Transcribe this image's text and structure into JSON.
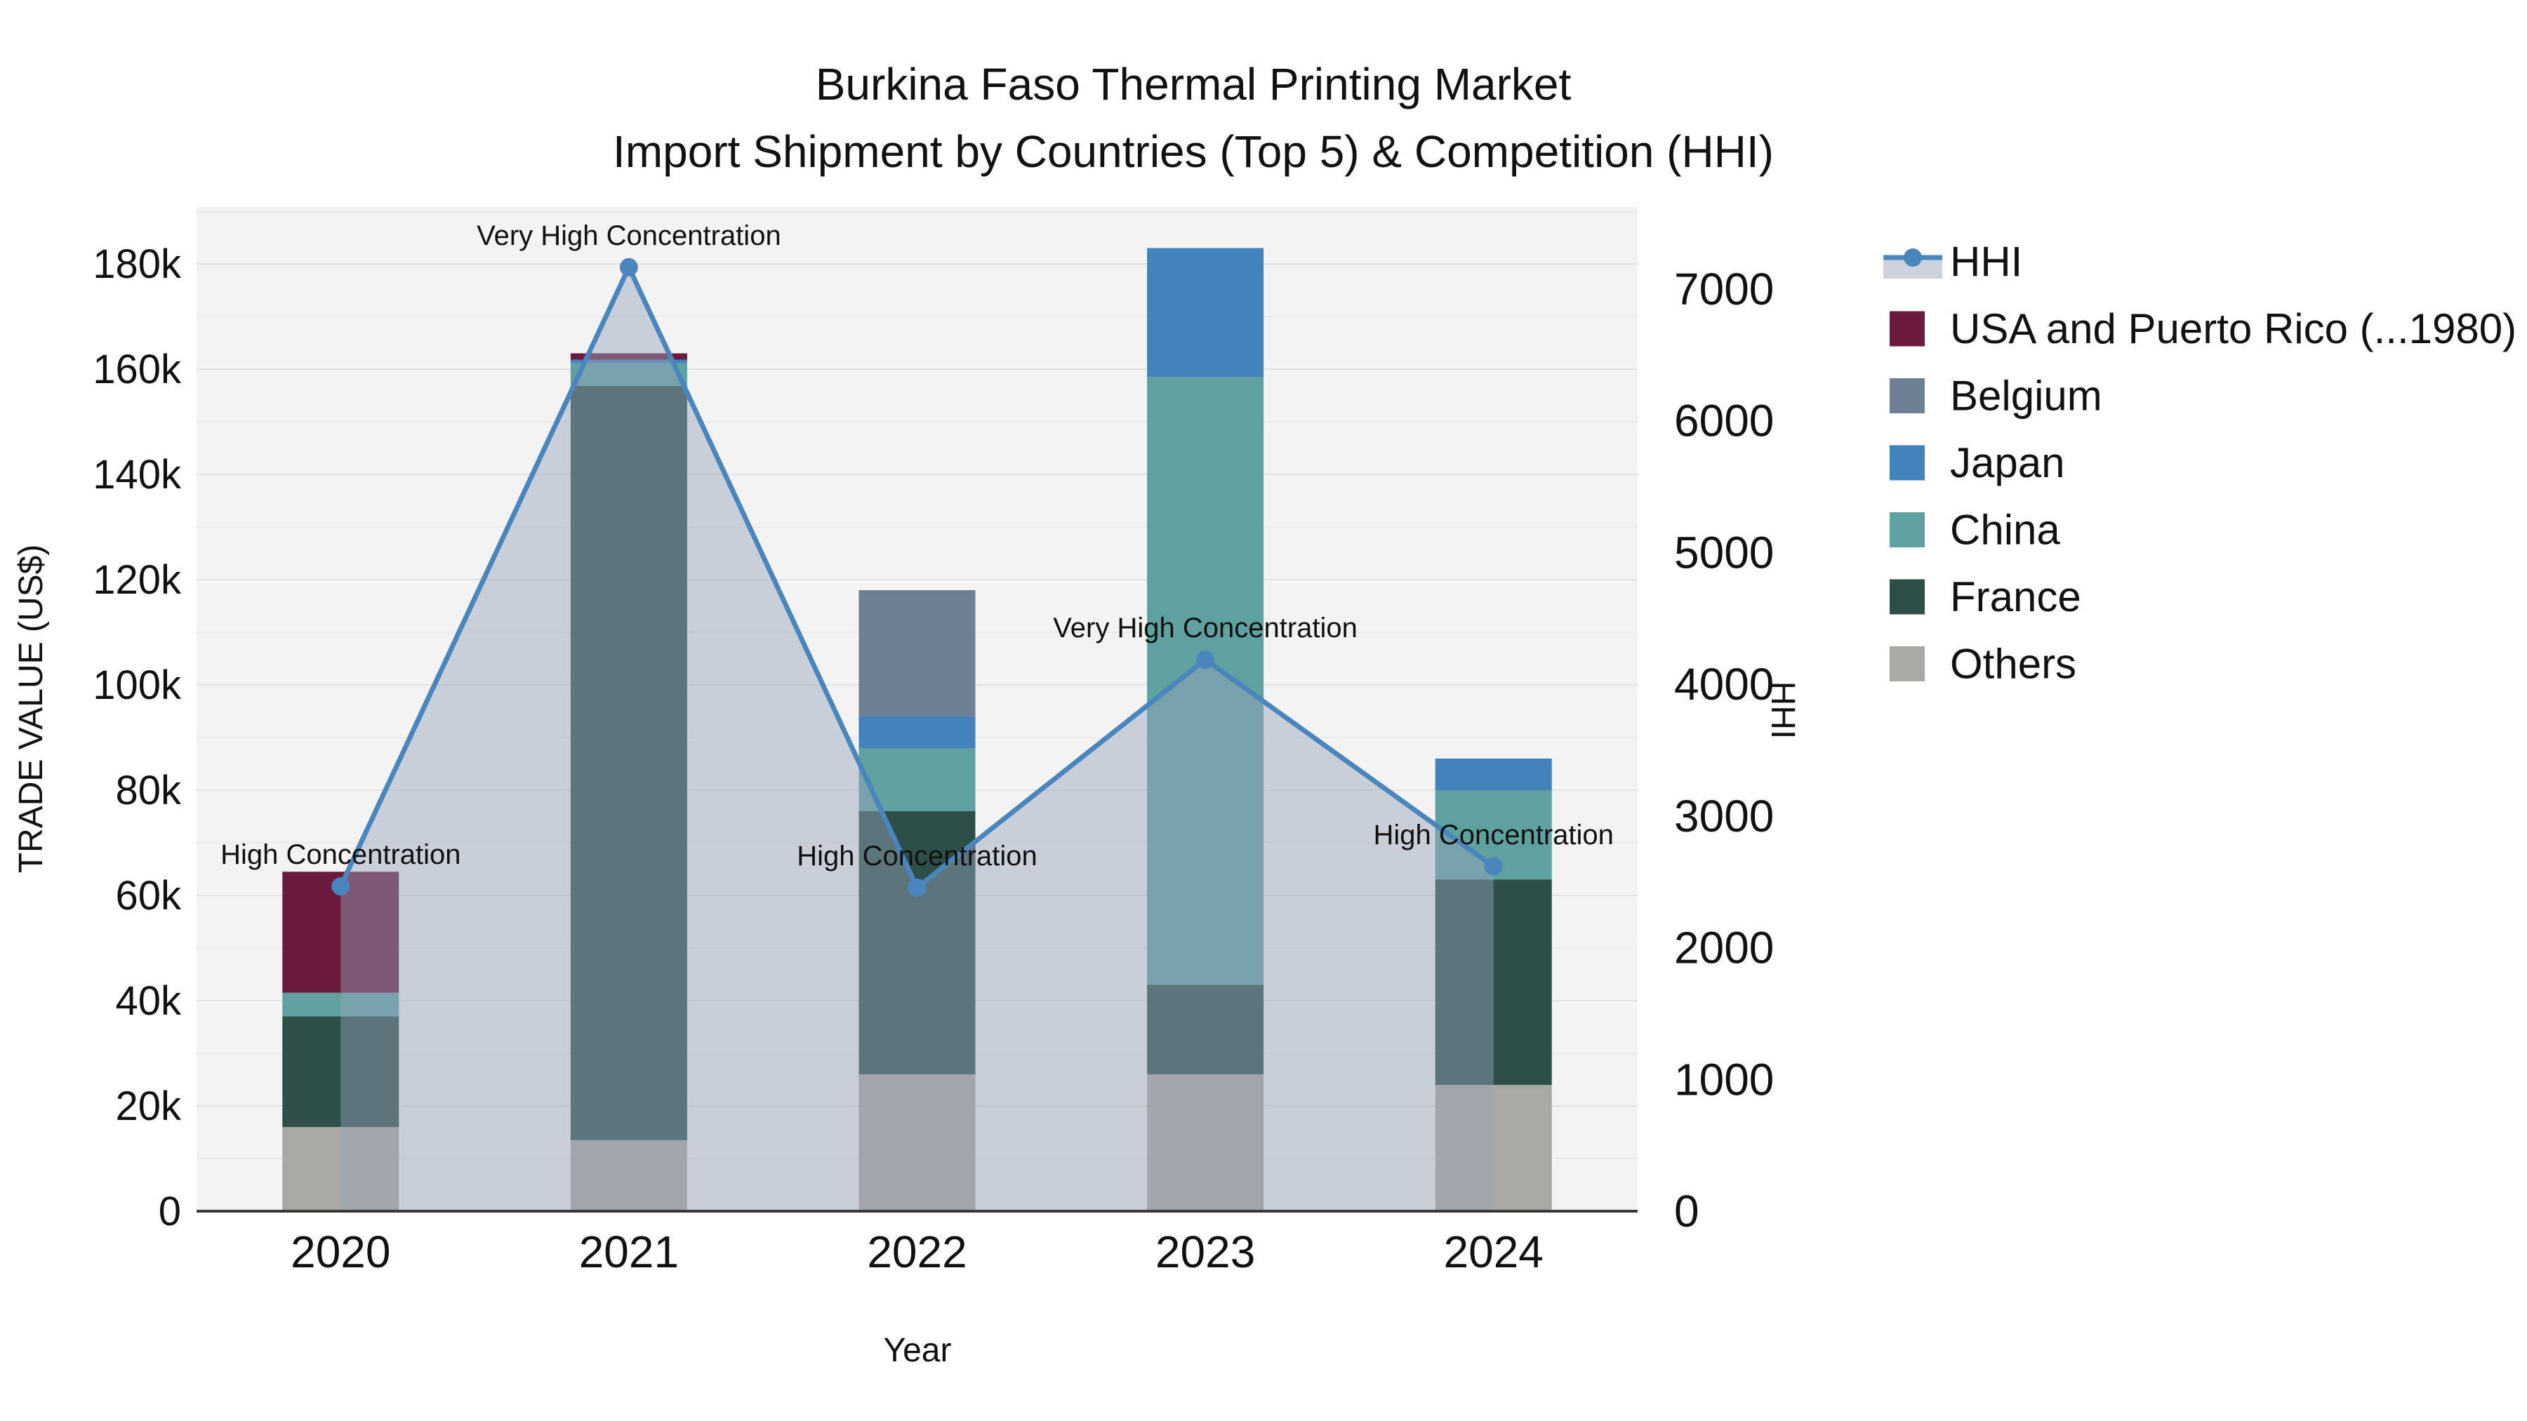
{
  "title": {
    "line1": "Burkina Faso Thermal Printing Market",
    "line2": "Import Shipment by Countries (Top 5) & Competition (HHI)"
  },
  "axes": {
    "x_label": "Year",
    "y_left_label": "TRADE VALUE (US$)",
    "y_right_label": "HHI",
    "y_left_ticks": [
      "0",
      "20k",
      "40k",
      "60k",
      "80k",
      "100k",
      "120k",
      "140k",
      "160k",
      "180k"
    ],
    "y_right_ticks": [
      "0",
      "1000",
      "2000",
      "3000",
      "4000",
      "5000",
      "6000",
      "7000"
    ]
  },
  "legend": {
    "items": [
      {
        "label": "HHI",
        "color": "#4a86be",
        "band": "#ccd3dc",
        "type": "line"
      },
      {
        "label": "USA and Puerto Rico (...1980)",
        "color": "#6b1c3e",
        "type": "box"
      },
      {
        "label": "Belgium",
        "color": "#6e8093",
        "type": "box"
      },
      {
        "label": "Japan",
        "color": "#4383bd",
        "type": "box"
      },
      {
        "label": "China",
        "color": "#5fa1a1",
        "type": "box"
      },
      {
        "label": "France",
        "color": "#2d4f48",
        "type": "box"
      },
      {
        "label": "Others",
        "color": "#a9a8a5",
        "type": "box"
      }
    ]
  },
  "chart_data": {
    "type": "bar+line",
    "title": "Burkina Faso Thermal Printing Market — Import Shipment by Countries (Top 5) & Competition (HHI)",
    "categories": [
      "2020",
      "2021",
      "2022",
      "2023",
      "2024"
    ],
    "stacked": true,
    "series": [
      {
        "name": "USA and Puerto Rico (...1980)",
        "color": "#6b1c3e",
        "values": [
          23000,
          1200,
          0,
          0,
          0
        ]
      },
      {
        "name": "Belgium",
        "color": "#6e8093",
        "values": [
          0,
          0,
          24000,
          0,
          0
        ]
      },
      {
        "name": "Japan",
        "color": "#4383bd",
        "values": [
          0,
          700,
          6000,
          24500,
          6000
        ]
      },
      {
        "name": "China",
        "color": "#5fa1a1",
        "values": [
          4500,
          4300,
          12000,
          115500,
          17000
        ]
      },
      {
        "name": "France",
        "color": "#2d4f48",
        "values": [
          21000,
          143300,
          50000,
          17000,
          39000
        ]
      },
      {
        "name": "Others",
        "color": "#a9a8a5",
        "values": [
          16000,
          13500,
          26000,
          26000,
          24000
        ]
      }
    ],
    "bar_totals": [
      64500,
      163000,
      118000,
      183000,
      86000
    ],
    "line_series": {
      "name": "HHI",
      "color": "#4a86be",
      "area_fill": "#97a5b8",
      "area_opacity": 0.45,
      "values": [
        2466,
        7166,
        2456,
        4187,
        2616
      ]
    },
    "annotations": [
      {
        "category": "2020",
        "text": "High Concentration"
      },
      {
        "category": "2021",
        "text": "Very High Concentration"
      },
      {
        "category": "2022",
        "text": "High Concentration"
      },
      {
        "category": "2023",
        "text": "Very High Concentration"
      },
      {
        "category": "2024",
        "text": "High Concentration"
      }
    ],
    "xlabel": "Year",
    "ylabel_left": "TRADE VALUE (US$)",
    "ylabel_right": "HHI",
    "y_left": {
      "lim": [
        0,
        190800
      ],
      "tick_step": 20000
    },
    "y_right": {
      "lim": [
        0,
        7623
      ],
      "tick_step": 1000
    },
    "grid": true,
    "legend_position": "right"
  }
}
